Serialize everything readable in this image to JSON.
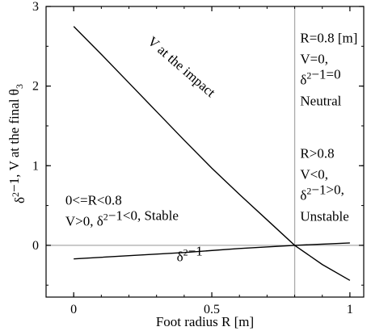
{
  "chart_data": {
    "type": "line",
    "xlabel": "Foot radius R [m]",
    "ylabel": "δ²−1, V at the final θ₃",
    "xlim": [
      -0.1,
      1.05
    ],
    "ylim": [
      -0.65,
      3.0
    ],
    "x_ticks": [
      0,
      0.5,
      1
    ],
    "x_tick_labels": [
      "0",
      "0.5",
      "1"
    ],
    "y_ticks": [
      0,
      1,
      2,
      3
    ],
    "y_tick_labels": [
      "0",
      "1",
      "2",
      "3"
    ],
    "grid": false,
    "reference_lines": [
      {
        "orientation": "horizontal",
        "value": 0,
        "color": "#aaaaaa"
      },
      {
        "orientation": "vertical",
        "value": 0.8,
        "color": "#aaaaaa"
      }
    ],
    "series": [
      {
        "name": "V at the impact",
        "x": [
          0,
          0.1,
          0.2,
          0.3,
          0.4,
          0.5,
          0.6,
          0.7,
          0.8,
          0.9,
          1.0
        ],
        "y": [
          2.75,
          2.4,
          2.04,
          1.68,
          1.32,
          0.97,
          0.64,
          0.32,
          0.0,
          -0.24,
          -0.44
        ]
      },
      {
        "name": "δ²−1",
        "x": [
          0,
          0.2,
          0.4,
          0.6,
          0.8,
          1.0
        ],
        "y": [
          -0.17,
          -0.13,
          -0.09,
          -0.04,
          0.0,
          0.03
        ]
      }
    ],
    "series_labels": [
      {
        "text": "V at the impact",
        "x": 0.38,
        "y": 2.2,
        "angle": 41
      },
      {
        "text": "δ²−1",
        "x": 0.42,
        "y": -0.2,
        "angle": 0
      }
    ],
    "annotations": [
      {
        "lines": [
          "R=0.8 [m]",
          "V=0,",
          "δ²−1=0",
          "Neutral"
        ],
        "x": 0.82,
        "y": 2.55
      },
      {
        "lines": [
          "R>0.8",
          "V<0,",
          "δ²−1>0,",
          "Unstable"
        ],
        "x": 0.82,
        "y": 1.1
      },
      {
        "lines": [
          "0<=R<0.8",
          "V>0,  δ²−1<0,  Stable"
        ],
        "x": -0.03,
        "y": 0.51
      }
    ]
  }
}
